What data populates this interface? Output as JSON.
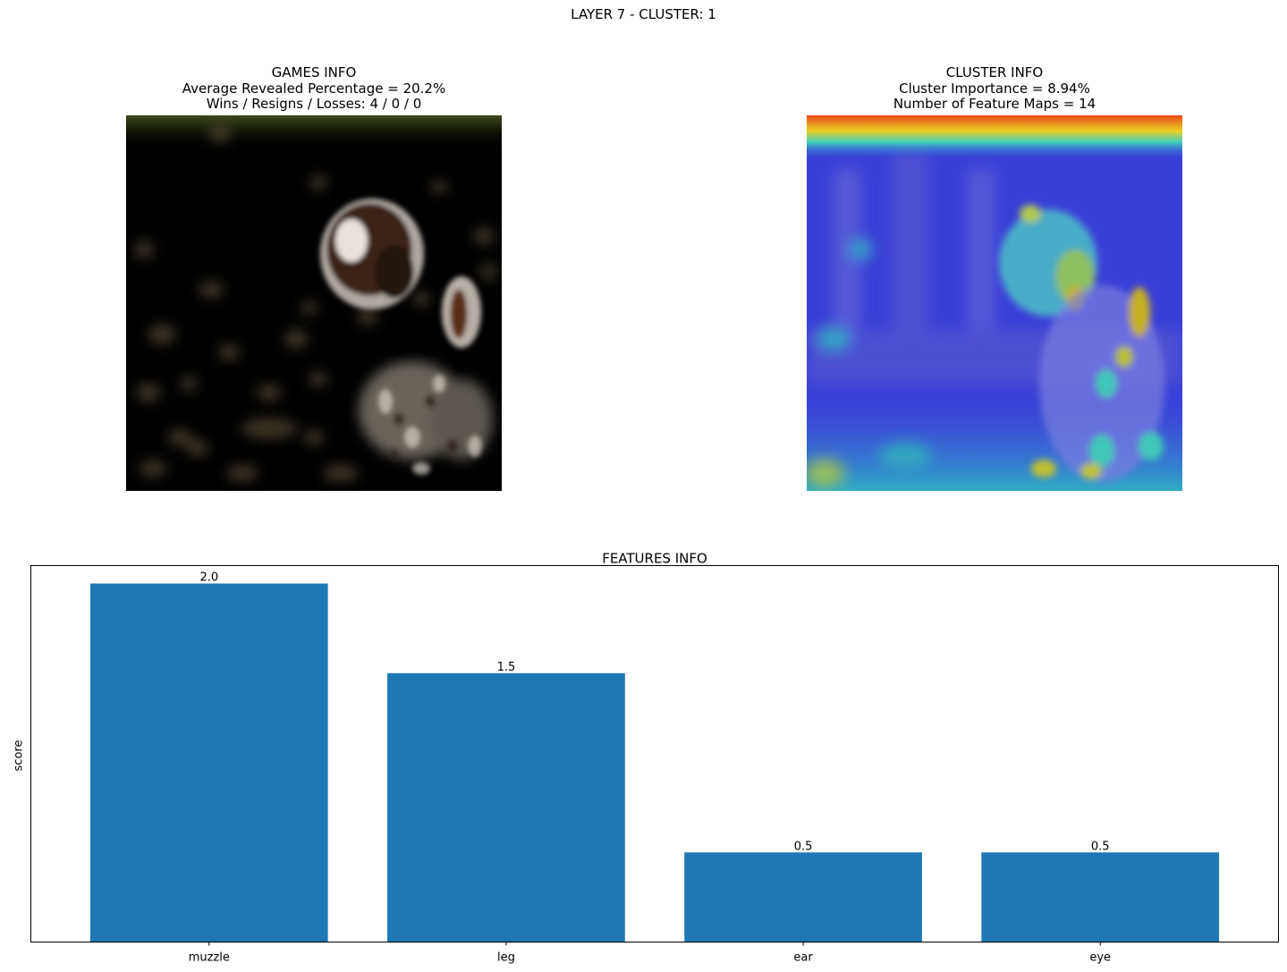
{
  "figure": {
    "suptitle": "LAYER 7 - CLUSTER: 1"
  },
  "games_panel": {
    "title": "GAMES INFO",
    "line1": "Average Revealed Percentage = 20.2%",
    "line2": "Wins / Resigns / Losses: 4 / 0 / 0",
    "image": "masked-dog-photo"
  },
  "cluster_panel": {
    "title": "CLUSTER INFO",
    "line1": "Cluster Importance = 8.94%",
    "line2": "Number of Feature Maps = 14",
    "image": "dog-heatmap-overlay"
  },
  "chart_data": {
    "type": "bar",
    "title": "FEATURES INFO",
    "xlabel": "",
    "ylabel": "score",
    "categories": [
      "muzzle",
      "leg",
      "ear",
      "eye"
    ],
    "values": [
      2.0,
      1.5,
      0.5,
      0.5
    ],
    "value_labels": [
      "2.0",
      "1.5",
      "0.5",
      "0.5"
    ],
    "ylim": [
      0,
      2.1
    ],
    "bar_color": "#1f77b4",
    "grid": false,
    "y_ticks_visible": false
  }
}
